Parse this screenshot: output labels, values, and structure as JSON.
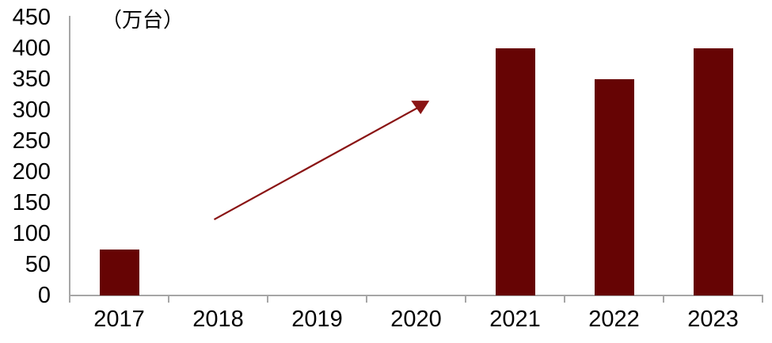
{
  "chart_data": {
    "type": "bar",
    "title": "",
    "unit": "（万台）",
    "categories": [
      "2017",
      "2018",
      "2019",
      "2020",
      "2021",
      "2022",
      "2023"
    ],
    "values": [
      75,
      null,
      null,
      null,
      400,
      350,
      400
    ],
    "xlabel": "",
    "ylabel": "",
    "ylim": [
      0,
      450
    ],
    "ytick_step": 50,
    "y_tick_labels": [
      "0",
      "50",
      "100",
      "150",
      "200",
      "250",
      "300",
      "350",
      "400",
      "450"
    ],
    "grid": "off",
    "legend": "none",
    "bar_color": "#660404",
    "axis_color": "#a6a6a6",
    "text_color": "#000000",
    "annotation": {
      "type": "trend-arrow",
      "color": "#8a1414",
      "from": {
        "category_frac": 1.46,
        "value": 123
      },
      "to": {
        "category_frac": 3.53,
        "value": 305
      }
    }
  }
}
